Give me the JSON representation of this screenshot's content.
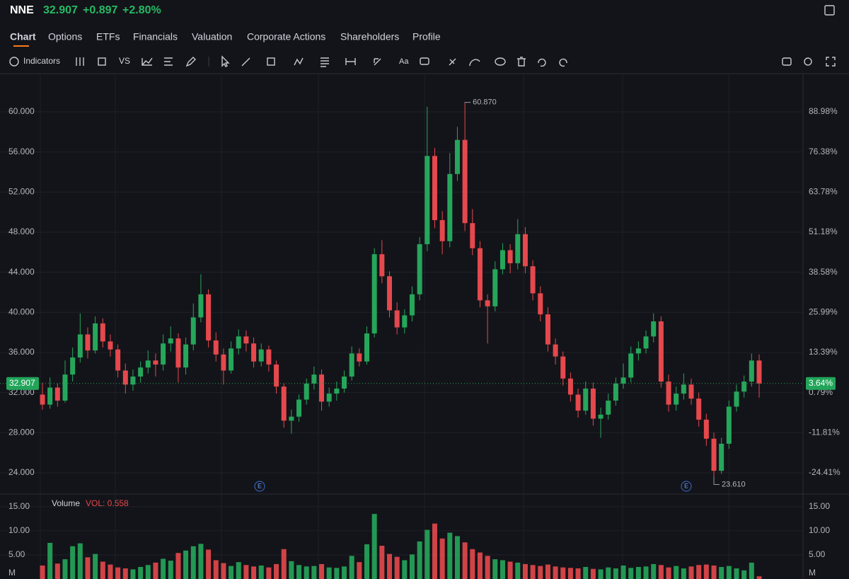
{
  "header": {
    "symbol": "NNE",
    "price": "32.907",
    "change": "+0.897",
    "change_pct": "+2.80%"
  },
  "tabs": [
    "Chart",
    "Options",
    "ETFs",
    "Financials",
    "Valuation",
    "Corporate Actions",
    "Shareholders",
    "Profile"
  ],
  "toolbar": {
    "indicators": "Indicators",
    "compare": "VS",
    "text": "Aa"
  },
  "events": [
    "E",
    "E"
  ],
  "chart_data": [
    {
      "type": "candlestick",
      "up_color": "#26a65b",
      "down_color": "#e5484d",
      "open": [
        31.8,
        30.8,
        32.5,
        31.2,
        33.8,
        35.5,
        37.8,
        36.2,
        38.9,
        37.1,
        36.3,
        34.2,
        32.8,
        33.6,
        34.5,
        35.2,
        34.8,
        36.9,
        37.4,
        34.5,
        36.8,
        39.5,
        41.8,
        37.2,
        35.8,
        34.2,
        36.4,
        37.6,
        36.9,
        35.1,
        36.3,
        34.8,
        32.6,
        29.2,
        29.6,
        31.3,
        32.9,
        33.8,
        31.1,
        31.9,
        32.4,
        33.6,
        35.9,
        35.1,
        37.9,
        45.8,
        43.6,
        40.2,
        38.5,
        39.7,
        41.8,
        46.8,
        55.6,
        49.2,
        47.1,
        53.8,
        57.2,
        48.9,
        46.4,
        41.2,
        40.6,
        44.3,
        46.2,
        44.9,
        47.8,
        44.6,
        41.9,
        39.8,
        36.8,
        35.6,
        33.4,
        31.8,
        30.2,
        32.4,
        29.4,
        29.8,
        31.2,
        32.9,
        33.5,
        35.9,
        36.4,
        37.6,
        39.1,
        33.1,
        30.8,
        31.9,
        32.8,
        31.4,
        29.3,
        27.4,
        24.2,
        26.9,
        30.6,
        32.1,
        33.1,
        35.2
      ],
      "high": [
        33.0,
        33.5,
        32.9,
        35.2,
        36.5,
        39.9,
        38.5,
        39.6,
        39.4,
        37.8,
        36.8,
        34.9,
        34.3,
        35.1,
        36.2,
        35.9,
        37.8,
        38.6,
        37.9,
        37.5,
        40.9,
        43.8,
        42.3,
        38.0,
        36.4,
        37.1,
        38.3,
        38.2,
        37.5,
        36.9,
        36.7,
        35.2,
        32.9,
        30.3,
        31.8,
        33.4,
        34.6,
        34.3,
        32.5,
        33.1,
        34.2,
        36.6,
        36.4,
        38.6,
        46.4,
        47.2,
        44.1,
        41.0,
        40.3,
        42.6,
        47.5,
        60.5,
        56.4,
        50.1,
        55.9,
        58.5,
        60.87,
        50.3,
        47.1,
        41.8,
        45.1,
        46.9,
        46.8,
        49.3,
        48.5,
        45.2,
        42.6,
        40.5,
        37.4,
        36.1,
        34.0,
        32.4,
        33.1,
        33.0,
        30.5,
        31.9,
        33.5,
        34.9,
        36.6,
        37.1,
        38.2,
        39.9,
        39.6,
        33.8,
        32.6,
        33.9,
        33.4,
        32.0,
        29.9,
        28.0,
        27.5,
        31.2,
        32.8,
        33.7,
        35.9,
        35.8
      ],
      "low": [
        30.3,
        30.4,
        30.6,
        31.0,
        33.1,
        35.0,
        35.4,
        35.9,
        36.5,
        35.6,
        33.5,
        31.9,
        32.2,
        33.0,
        33.9,
        33.6,
        34.2,
        36.1,
        33.0,
        33.8,
        36.2,
        39.0,
        36.5,
        35.1,
        32.8,
        33.9,
        35.8,
        36.1,
        34.5,
        34.6,
        34.1,
        31.9,
        28.5,
        27.9,
        29.1,
        30.8,
        32.3,
        30.2,
        30.6,
        31.2,
        32.0,
        33.2,
        34.6,
        34.8,
        37.5,
        42.9,
        39.5,
        37.8,
        37.9,
        39.1,
        41.2,
        46.1,
        48.4,
        45.8,
        46.5,
        53.1,
        48.1,
        45.7,
        40.5,
        36.9,
        40.1,
        43.8,
        43.9,
        44.3,
        43.9,
        41.2,
        39.1,
        36.1,
        34.8,
        32.7,
        31.1,
        29.5,
        29.8,
        28.7,
        27.5,
        29.3,
        30.7,
        32.4,
        33.0,
        35.2,
        35.9,
        37.0,
        32.5,
        30.1,
        30.2,
        31.3,
        30.8,
        28.6,
        26.7,
        23.61,
        23.9,
        26.4,
        30.1,
        31.5,
        32.6,
        31.5
      ],
      "close": [
        30.8,
        32.5,
        31.2,
        33.8,
        35.5,
        37.8,
        36.2,
        38.9,
        37.1,
        36.3,
        34.2,
        32.8,
        33.6,
        34.5,
        35.2,
        34.8,
        36.9,
        37.4,
        34.5,
        36.8,
        39.5,
        41.8,
        37.2,
        35.8,
        34.2,
        36.4,
        37.6,
        36.9,
        35.1,
        36.3,
        34.8,
        32.6,
        29.2,
        29.6,
        31.3,
        32.9,
        33.8,
        31.1,
        31.9,
        32.4,
        33.6,
        35.9,
        35.1,
        37.9,
        45.8,
        43.6,
        40.2,
        38.5,
        39.7,
        41.8,
        46.8,
        55.6,
        49.2,
        47.1,
        53.8,
        57.2,
        48.9,
        46.4,
        41.2,
        40.6,
        44.3,
        46.2,
        44.9,
        47.8,
        44.6,
        41.9,
        39.8,
        36.8,
        35.6,
        33.4,
        31.8,
        30.2,
        32.4,
        29.4,
        29.8,
        31.2,
        32.9,
        33.5,
        35.9,
        36.4,
        37.6,
        39.1,
        33.1,
        30.8,
        31.9,
        32.8,
        31.4,
        29.3,
        27.4,
        24.2,
        26.9,
        30.6,
        32.1,
        33.1,
        35.2,
        32.907
      ],
      "ylim": [
        21.88,
        63.74
      ],
      "yticks": [
        {
          "value": 60,
          "label": "60.000"
        },
        {
          "value": 56,
          "label": "56.000"
        },
        {
          "value": 52,
          "label": "52.000"
        },
        {
          "value": 48,
          "label": "48.000"
        },
        {
          "value": 44,
          "label": "44.000"
        },
        {
          "value": 40,
          "label": "40.000"
        },
        {
          "value": 36,
          "label": "36.000"
        },
        {
          "value": 32,
          "label": "32.000"
        },
        {
          "value": 28,
          "label": "28.000"
        },
        {
          "value": 24,
          "label": "24.000"
        }
      ],
      "y2lim": [
        -31.09,
        100.76
      ],
      "y2ticks": [
        {
          "value": 88.98,
          "label": "88.98%"
        },
        {
          "value": 76.38,
          "label": "76.38%"
        },
        {
          "value": 63.78,
          "label": "63.78%"
        },
        {
          "value": 51.18,
          "label": "51.18%"
        },
        {
          "value": 38.58,
          "label": "38.58%"
        },
        {
          "value": 25.99,
          "label": "25.99%"
        },
        {
          "value": 13.39,
          "label": "13.39%"
        },
        {
          "value": 0.79,
          "label": "0.79%"
        },
        {
          "value": -11.81,
          "label": "-11.81%"
        },
        {
          "value": -24.41,
          "label": "-24.41%"
        }
      ],
      "last_price": {
        "value": 32.907,
        "label": "32.907",
        "pct_value": 3.64,
        "pct_label": "3.64%"
      },
      "annotations": [
        {
          "value": 60.87,
          "label": "60.870",
          "kind": "high"
        },
        {
          "value": 23.61,
          "label": "23.610",
          "kind": "low"
        }
      ]
    },
    {
      "type": "bar",
      "title": "Volume",
      "value_label": "VOL: 0.558",
      "unit": "M",
      "values": [
        2.8,
        7.5,
        3.2,
        4.1,
        6.8,
        7.4,
        4.5,
        5.2,
        3.6,
        3.0,
        2.4,
        2.2,
        2.0,
        2.5,
        2.9,
        3.4,
        4.2,
        3.8,
        5.4,
        5.9,
        6.8,
        7.3,
        6.1,
        3.9,
        3.3,
        2.7,
        3.5,
        2.9,
        2.6,
        2.8,
        2.4,
        3.1,
        6.2,
        3.7,
        2.9,
        2.6,
        2.7,
        3.1,
        2.4,
        2.3,
        2.6,
        4.8,
        3.5,
        7.2,
        13.5,
        6.9,
        5.2,
        4.6,
        3.9,
        5.1,
        7.8,
        10.2,
        11.5,
        8.4,
        9.6,
        8.9,
        7.6,
        6.2,
        5.5,
        4.8,
        4.1,
        3.9,
        3.6,
        3.4,
        3.1,
        2.9,
        2.7,
        3.0,
        2.6,
        2.4,
        2.3,
        2.2,
        2.5,
        2.1,
        2.0,
        2.4,
        2.2,
        2.8,
        2.3,
        2.5,
        2.6,
        3.1,
        2.9,
        2.4,
        2.7,
        2.2,
        2.6,
        2.9,
        3.0,
        2.8,
        2.5,
        2.7,
        2.2,
        1.8,
        3.4,
        0.558
      ],
      "ylim": [
        0,
        16.6
      ],
      "yticks": [
        {
          "value": 15,
          "label": "15.00"
        },
        {
          "value": 10,
          "label": "10.00"
        },
        {
          "value": 5,
          "label": "5.00"
        }
      ]
    }
  ]
}
